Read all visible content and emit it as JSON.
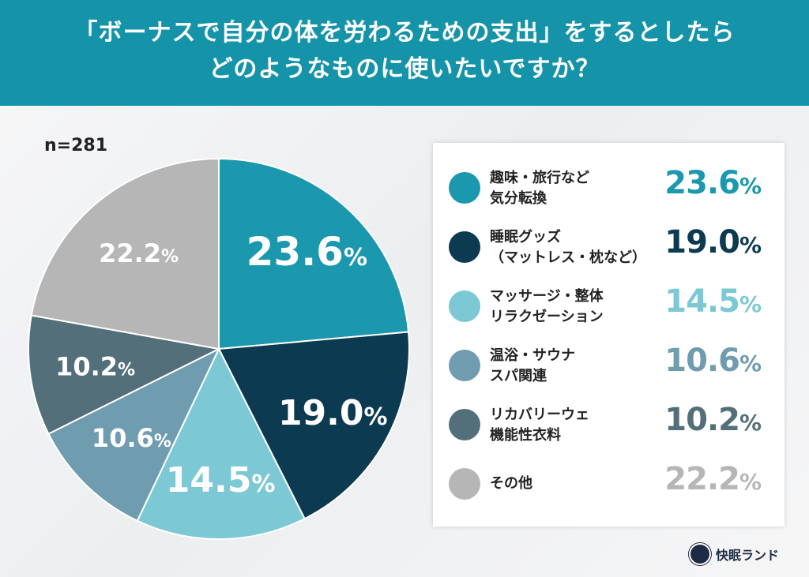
{
  "title_line1": "「ボーナスで自分の体を労わるための支出」をするとしたら",
  "title_line2": "どのようなものに使いたいですか？",
  "sample": "n=281",
  "brand": "快眠ランド",
  "chart_data": {
    "type": "pie",
    "title": "「ボーナスで自分の体を労わるための支出」をするとしたらどのようなものに使いたいですか？",
    "unit": "%",
    "start": "top, clockwise",
    "legend_position": "right",
    "slices": [
      {
        "label": "趣味・旅行など\n気分転換",
        "value": 23.6,
        "display": "23.6",
        "color": "#1b98ad"
      },
      {
        "label": "睡眠グッズ\n（マットレス・枕など）",
        "value": 19.0,
        "display": "19.0",
        "color": "#0b3a51"
      },
      {
        "label": "マッサージ・整体\nリラクゼーション",
        "value": 14.5,
        "display": "14.5",
        "color": "#7cc8d5"
      },
      {
        "label": "温浴・サウナ\nスパ関連",
        "value": 10.6,
        "display": "10.6",
        "color": "#6f9cae"
      },
      {
        "label": "リカバリーウェ\n機能性衣料",
        "value": 10.2,
        "display": "10.2",
        "color": "#53707a"
      },
      {
        "label": "その他",
        "value": 22.2,
        "display": "22.2",
        "color": "#b6b6b6"
      }
    ]
  }
}
